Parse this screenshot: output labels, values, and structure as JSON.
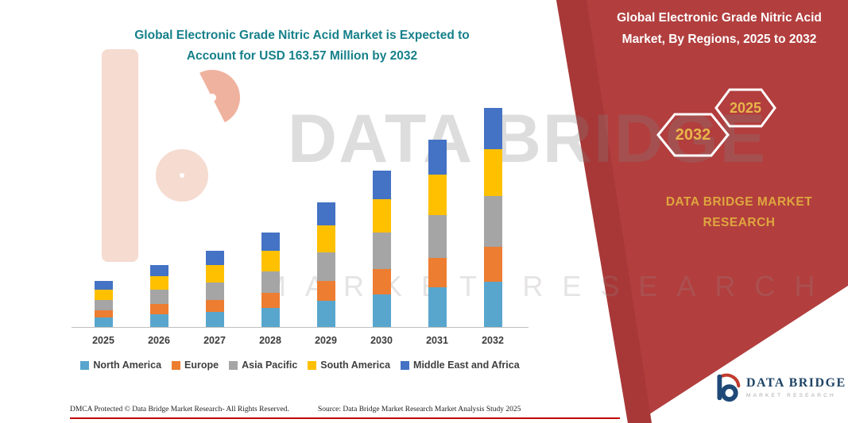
{
  "chart": {
    "title": "Global Electronic Grade Nitric Acid Market is Expected to Account for USD 163.57 Million by 2032"
  },
  "chart_data": {
    "type": "bar",
    "stacked": true,
    "title": "Global Electronic Grade Nitric Acid Market is Expected to Account for USD 163.57 Million by 2032",
    "unit": "USD Million",
    "xlabel": "",
    "ylabel": "",
    "ylim": [
      0,
      170
    ],
    "grid": false,
    "legend_position": "bottom",
    "categories": [
      "2025",
      "2026",
      "2027",
      "2028",
      "2029",
      "2030",
      "2031",
      "2032"
    ],
    "series": [
      {
        "name": "North America",
        "color": "#58a6ce",
        "values": [
          7.5,
          10,
          12,
          15,
          20,
          25,
          30,
          34
        ]
      },
      {
        "name": "Europe",
        "color": "#ed7d31",
        "values": [
          5.5,
          7.5,
          9,
          11,
          15,
          19,
          22,
          26
        ]
      },
      {
        "name": "Asia Pacific",
        "color": "#a5a5a5",
        "values": [
          8,
          11,
          13,
          16,
          21,
          27,
          32,
          38
        ]
      },
      {
        "name": "South America",
        "color": "#ffc000",
        "values": [
          7.5,
          10,
          12.5,
          15.5,
          20,
          25,
          30,
          35
        ]
      },
      {
        "name": "Middle East and Africa",
        "color": "#4472c4",
        "values": [
          6.5,
          8.5,
          11,
          13.5,
          17,
          21,
          26,
          30.57
        ]
      }
    ],
    "annotations": {
      "total_2032": 163.57
    }
  },
  "panel": {
    "title": "Global Electronic Grade Nitric Acid Market, By Regions, 2025 to 2032",
    "hex_back_label": "2032",
    "hex_front_label": "2025",
    "brand": "DATA BRIDGE MARKET RESEARCH",
    "background_color": "#b23e3e",
    "accent_color": "#e7b64b"
  },
  "watermark": {
    "line1": "DATA BRIDGE",
    "line2": "MARKET RESEARCH"
  },
  "footer": {
    "dmca": "DMCA Protected © Data Bridge Market Research-  All Rights Reserved.",
    "source": "Source: Data Bridge Market Research  Market Analysis Study 2025"
  },
  "logo": {
    "name": "DATA BRIDGE",
    "sub": "MARKET RESEARCH"
  },
  "colors": {
    "title_teal": "#16808a",
    "footer_line_red": "#c00000",
    "logo_navy": "#1f4466",
    "logo_red": "#c23b2e"
  }
}
